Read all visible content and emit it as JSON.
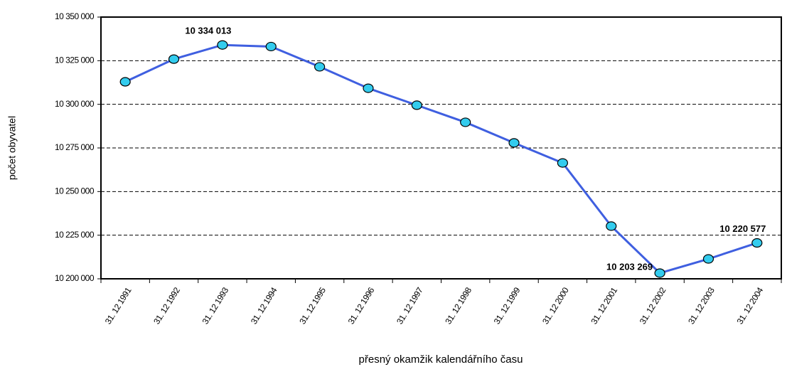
{
  "chart_data": {
    "type": "line",
    "y_label": "počet obyvatel",
    "x_label": "přesný okamžik kalendářního času",
    "categories": [
      "31. 12 1991",
      "31. 12 1992",
      "31. 12 1993",
      "31. 12 1994",
      "31. 12 1995",
      "31. 12 1996",
      "31. 12 1997",
      "31. 12 1998",
      "31. 12 1999",
      "31. 12 2000",
      "31. 12 2001",
      "31. 12 2002",
      "31. 12 2003",
      "31. 12 2004"
    ],
    "values": [
      10312900,
      10325900,
      10334013,
      10333100,
      10321500,
      10309200,
      10299500,
      10289700,
      10277900,
      10266400,
      10230200,
      10203269,
      10211400,
      10220577
    ],
    "value_labels": [
      null,
      null,
      "10 334 013",
      null,
      null,
      null,
      null,
      null,
      null,
      null,
      null,
      "10 203 269",
      null,
      "10 220 577"
    ],
    "color": "#3f5fe0",
    "marker_color": "#33ccee",
    "ylim": [
      10200000,
      10350000
    ],
    "yticks": [
      {
        "value": 10200000,
        "label": "10 200 000"
      },
      {
        "value": 10225000,
        "label": "10 225 000"
      },
      {
        "value": 10250000,
        "label": "10 250 000"
      },
      {
        "value": 10275000,
        "label": "10 275 000"
      },
      {
        "value": 10300000,
        "label": "10 300 000"
      },
      {
        "value": 10325000,
        "label": "10 325 000"
      },
      {
        "value": 10350000,
        "label": "10 350 000"
      }
    ],
    "grid": true
  }
}
